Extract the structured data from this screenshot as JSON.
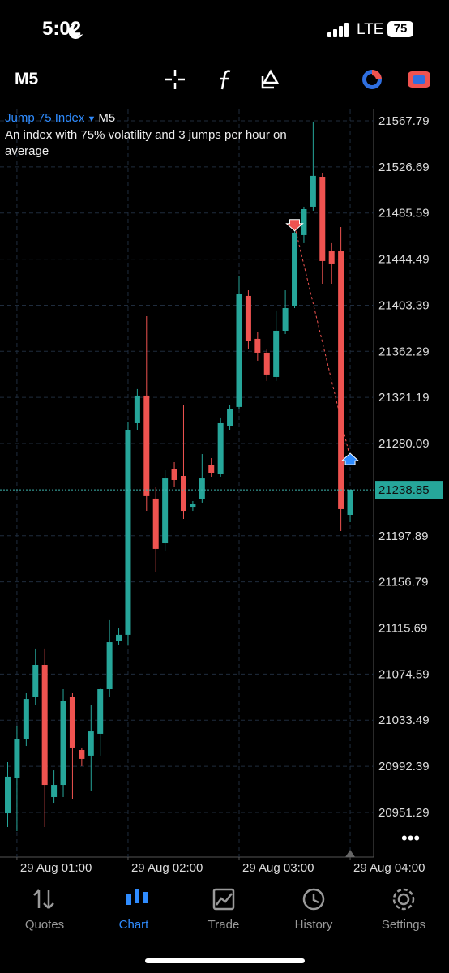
{
  "status_bar": {
    "time": "5:02",
    "network": "LTE",
    "battery": "75"
  },
  "toolbar": {
    "timeframe": "M5"
  },
  "chart_header": {
    "symbol": "Jump 75 Index",
    "timeframe": "M5",
    "description": "An index with 75% volatility and 3 jumps per hour on average"
  },
  "chart_data": {
    "type": "candlestick",
    "categories": [
      null,
      "29 Aug 01:00",
      null,
      null,
      null,
      null,
      null,
      null,
      null,
      null,
      null,
      null,
      null,
      "29 Aug 02:00",
      null,
      null,
      null,
      null,
      null,
      null,
      null,
      null,
      null,
      null,
      null,
      "29 Aug 03:00",
      null,
      null,
      null,
      null,
      null,
      null,
      null,
      null,
      null,
      null,
      null,
      "29 Aug 04:00"
    ],
    "open": [
      20950.5,
      20981.6,
      21016.3,
      21053.9,
      21082.8,
      20965.0,
      20975.8,
      21053.9,
      21006.9,
      21001.9,
      21021.4,
      21061.1,
      21104.5,
      21109.6,
      21298.2,
      21322.8,
      21231.0,
      21191.2,
      21257.7,
      21251.2,
      21223.7,
      21230.3,
      21261.3,
      21252.7,
      21295.3,
      21312.7,
      21411.7,
      21373.4,
      21361.1,
      21339.4,
      21380.6,
      21402.3,
      21465.9,
      21491.2,
      21517.9,
      21451.4,
      21451.4,
      21216.5
    ],
    "high": [
      20996.1,
      21028.6,
      21057.5,
      21097.3,
      21097.3,
      20988.8,
      21061.1,
      21057.5,
      21009.1,
      21046.7,
      21062.6,
      21122.6,
      21115.3,
      21299.6,
      21328.6,
      21393.6,
      21241.8,
      21256.3,
      21263.5,
      21314.1,
      21228.8,
      21270.7,
      21267.1,
      21303.3,
      21314.1,
      21429.7,
      21416.7,
      21379.2,
      21364.7,
      21398.7,
      21416.7,
      21473.1,
      21491.2,
      21567.1,
      21521.5,
      21458.7,
      21473.1,
      21238.9
    ],
    "low": [
      20938.2,
      20934.6,
      21010.5,
      21046.7,
      20938.2,
      20959.9,
      20965.0,
      20963.5,
      20992.5,
      20970.8,
      21001.9,
      21053.9,
      21100.9,
      21100.9,
      21292.4,
      21220.1,
      21165.9,
      21184.0,
      21241.8,
      21212.9,
      21220.1,
      21227.4,
      21250.5,
      21250.5,
      21292.4,
      21310.5,
      21364.7,
      21353.9,
      21335.8,
      21335.8,
      21377.7,
      21400.8,
      21458.7,
      21487.6,
      21422.5,
      21422.5,
      21202.1,
      21210.0
    ],
    "close": [
      20983.1,
      21016.3,
      21052.4,
      21082.8,
      20975.8,
      20975.8,
      21051.0,
      21009.1,
      20999.0,
      21023.5,
      21061.1,
      21103.0,
      21109.6,
      21292.4,
      21322.8,
      21233.2,
      21186.2,
      21249.0,
      21247.6,
      21220.1,
      21225.9,
      21249.0,
      21254.1,
      21298.2,
      21310.5,
      21413.8,
      21371.9,
      21361.1,
      21341.6,
      21380.6,
      21400.8,
      21468.1,
      21489.0,
      21518.7,
      21442.8,
      21440.6,
      21221.6,
      21238.85
    ],
    "up_color": "#26a69a",
    "down_color": "#ef5350",
    "ylim": [
      20911.5,
      21577.9
    ],
    "yticks": [
      21567.79,
      21526.69,
      21485.59,
      21444.49,
      21403.39,
      21362.29,
      21321.19,
      21280.09,
      21197.89,
      21156.79,
      21115.69,
      21074.59,
      21033.49,
      20992.39,
      20951.29
    ],
    "current_price": 21238.85,
    "trade": {
      "open": 21474.0,
      "close": 21267.0
    },
    "grid": true
  },
  "tabs": [
    "Quotes",
    "Chart",
    "Trade",
    "History",
    "Settings"
  ]
}
